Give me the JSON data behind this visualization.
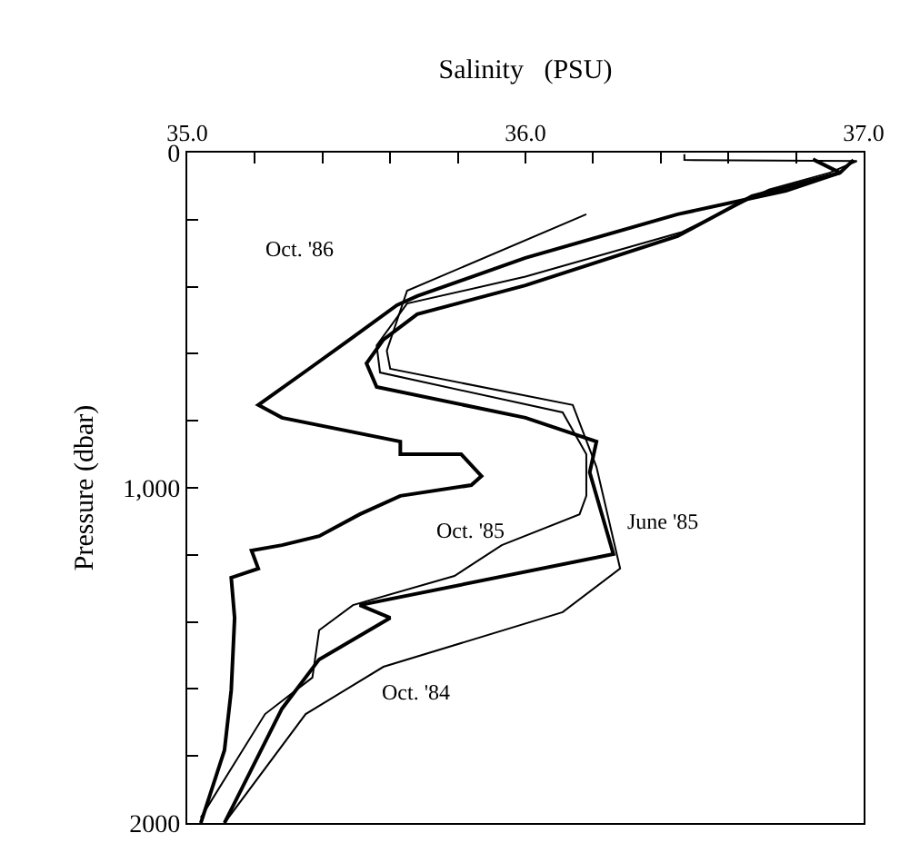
{
  "chart_data": {
    "type": "line",
    "xlabel": "Salinity   (PSU)",
    "ylabel": "Pressure (dbar)",
    "xlim": [
      35.0,
      37.0
    ],
    "ylim": [
      2000,
      0
    ],
    "xticks": [
      {
        "value": 35.0,
        "label": "35.0"
      },
      {
        "value": 35.2,
        "label": null
      },
      {
        "value": 35.4,
        "label": null
      },
      {
        "value": 35.6,
        "label": null
      },
      {
        "value": 35.8,
        "label": null
      },
      {
        "value": 36.0,
        "label": "36.0"
      },
      {
        "value": 36.2,
        "label": null
      },
      {
        "value": 36.4,
        "label": null
      },
      {
        "value": 36.6,
        "label": null
      },
      {
        "value": 36.8,
        "label": null
      },
      {
        "value": 37.0,
        "label": "37.0"
      }
    ],
    "yticks": [
      0,
      {
        "value": 200,
        "label": null
      },
      {
        "value": 400,
        "label": null
      },
      {
        "value": 600,
        "label": null
      },
      {
        "value": 800,
        "label": null
      },
      {
        "value": 1000,
        "label": "1,000"
      },
      {
        "value": 1200,
        "label": null
      },
      {
        "value": 1400,
        "label": null
      },
      {
        "value": 1600,
        "label": null
      },
      {
        "value": 1800,
        "label": null
      },
      2000
    ],
    "marker": "none",
    "line_style": "solid",
    "series": [
      {
        "color": "#000000",
        "x": [
          36.85,
          36.93,
          36.77,
          36.45,
          36.0,
          35.68,
          35.62,
          35.48,
          35.36,
          35.21,
          35.28,
          35.63,
          35.63,
          35.81,
          35.87,
          35.84,
          35.63,
          35.51,
          35.39,
          35.28,
          35.19,
          35.21,
          35.13,
          35.14,
          35.13,
          35.11,
          35.04
        ],
        "values": [
          20,
          60,
          114,
          184,
          314,
          428,
          455,
          558,
          645,
          753,
          791,
          862,
          900,
          900,
          965,
          992,
          1024,
          1079,
          1144,
          1171,
          1187,
          1241,
          1268,
          1388,
          1604,
          1783,
          2000
        ]
      },
      {
        "color": "#000000",
        "x": [
          36.97,
          36.93,
          36.67,
          36.45,
          36.0,
          35.68,
          35.58,
          35.53,
          35.56,
          36.0,
          36.21,
          36.19,
          36.26,
          35.51,
          35.6,
          35.39,
          35.28,
          35.11
        ],
        "values": [
          22,
          60,
          130,
          249,
          396,
          482,
          558,
          629,
          699,
          791,
          862,
          954,
          1198,
          1350,
          1388,
          1512,
          1659,
          2000
        ]
      },
      {
        "color": "#000000",
        "x": [
          36.47,
          36.47,
          36.98,
          36.9,
          36.72,
          36.46,
          36.0,
          35.65,
          35.56,
          35.57,
          36.11,
          36.18,
          36.18,
          36.16,
          35.93,
          35.79,
          35.49,
          35.39,
          35.37,
          35.23,
          35.04
        ],
        "values": [
          5,
          22,
          25,
          60,
          110,
          238,
          370,
          450,
          575,
          656,
          775,
          900,
          1024,
          1079,
          1171,
          1263,
          1350,
          1425,
          1566,
          1675,
          1984
        ]
      },
      {
        "color": "#000000",
        "x": [
          36.18,
          35.65,
          35.59,
          35.6,
          36.14,
          36.21,
          36.27,
          36.28,
          36.11,
          35.58,
          35.35,
          35.11
        ],
        "values": [
          184,
          412,
          591,
          645,
          753,
          938,
          1198,
          1241,
          1371,
          1534,
          1675,
          2000
        ]
      }
    ],
    "annotations": [
      "Oct. '86",
      "Oct. '85",
      "June '85",
      "Oct. '84"
    ]
  }
}
